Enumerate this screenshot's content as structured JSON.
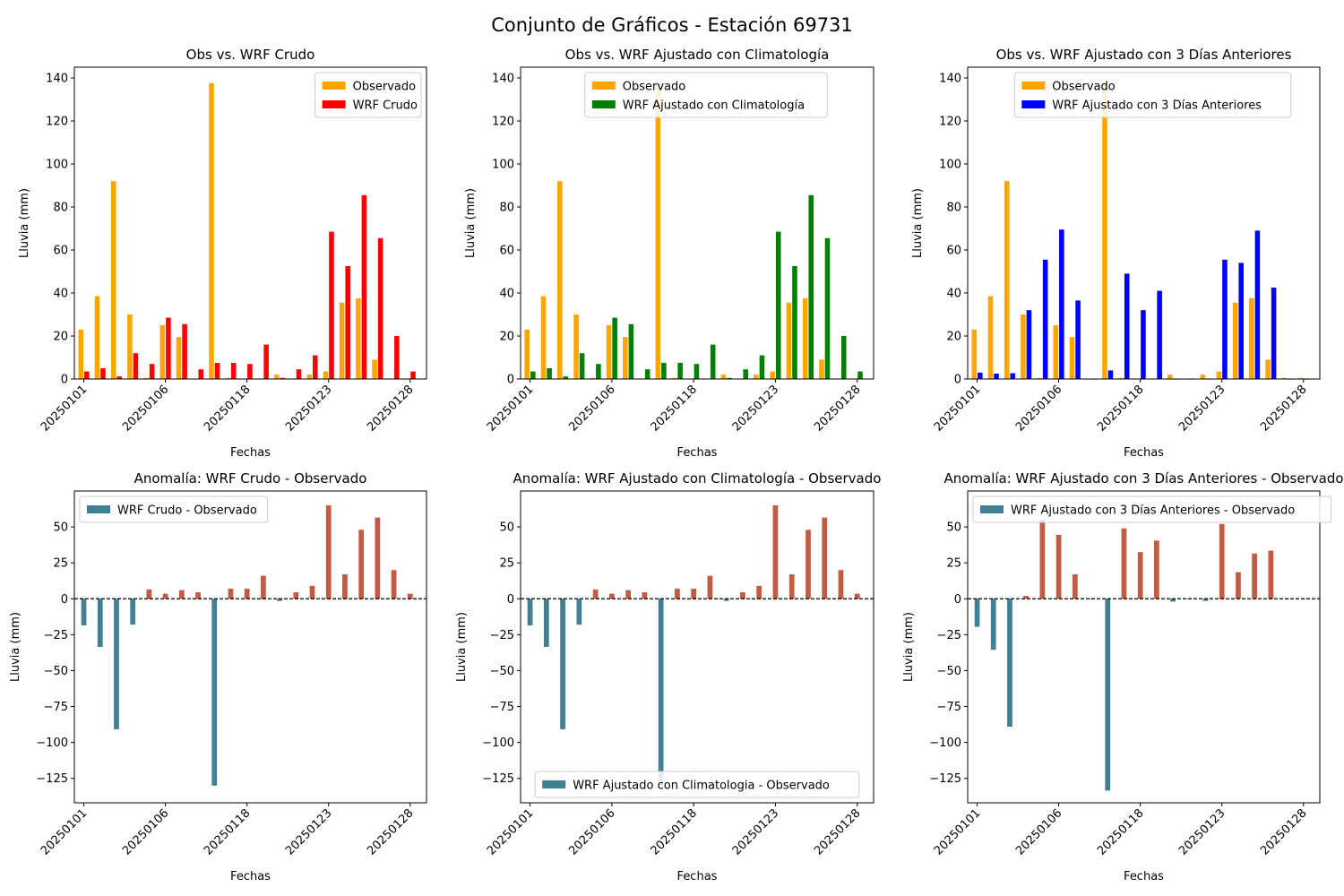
{
  "title": "Conjunto de Gráficos - Estación 69731",
  "colors": {
    "observed": "#ffa500",
    "raw": "#ff0000",
    "clim": "#008000",
    "prev": "#0000ff",
    "anom_neg": "#417f94",
    "anom_pos": "#c25a44"
  },
  "chart_data": [
    {
      "type": "bar",
      "title": "Obs vs. WRF Crudo",
      "xlabel": "Fechas",
      "ylabel": "Lluvia (mm)",
      "ylim": [
        0,
        145
      ],
      "yticks": [
        0,
        20,
        40,
        60,
        80,
        100,
        120,
        140
      ],
      "xtick_positions": [
        0,
        5,
        10,
        15,
        20
      ],
      "xtick_labels": [
        "20250101",
        "20250106",
        "20250118",
        "20250123",
        "20250128"
      ],
      "legend": "top-right",
      "series": [
        {
          "name": "Observado",
          "color_key": "observed",
          "values": [
            23,
            38.5,
            92,
            30,
            0.5,
            25,
            19.5,
            0,
            137.5,
            0.5,
            0,
            0,
            2,
            0,
            2,
            3.5,
            35.5,
            37.5,
            9,
            0,
            0
          ]
        },
        {
          "name": "WRF Crudo",
          "color_key": "raw",
          "values": [
            3.5,
            5,
            1.2,
            12,
            7,
            28.5,
            25.5,
            4.5,
            7.5,
            7.5,
            7,
            16,
            0.5,
            4.5,
            11,
            68.5,
            52.5,
            85.5,
            65.5,
            20,
            3.5
          ]
        }
      ]
    },
    {
      "type": "bar",
      "title": "Obs vs. WRF Ajustado con Climatología",
      "xlabel": "Fechas",
      "ylabel": "Lluvia (mm)",
      "ylim": [
        0,
        145
      ],
      "yticks": [
        0,
        20,
        40,
        60,
        80,
        100,
        120,
        140
      ],
      "xtick_positions": [
        0,
        5,
        10,
        15,
        20
      ],
      "xtick_labels": [
        "20250101",
        "20250106",
        "20250118",
        "20250123",
        "20250128"
      ],
      "legend": "top-center",
      "series": [
        {
          "name": "Observado",
          "color_key": "observed",
          "values": [
            23,
            38.5,
            92,
            30,
            0.5,
            25,
            19.5,
            0,
            137.5,
            0.5,
            0,
            0,
            2,
            0,
            2,
            3.5,
            35.5,
            37.5,
            9,
            0,
            0
          ]
        },
        {
          "name": "WRF Ajustado con Climatología",
          "color_key": "clim",
          "values": [
            3.5,
            5,
            1.2,
            12,
            7,
            28.5,
            25.5,
            4.5,
            7.5,
            7.5,
            7,
            16,
            0.5,
            4.5,
            11,
            68.5,
            52.5,
            85.5,
            65.5,
            20,
            3.5
          ]
        }
      ]
    },
    {
      "type": "bar",
      "title": "Obs vs. WRF Ajustado con 3 Días Anteriores",
      "xlabel": "Fechas",
      "ylabel": "Lluvia (mm)",
      "ylim": [
        0,
        145
      ],
      "yticks": [
        0,
        20,
        40,
        60,
        80,
        100,
        120,
        140
      ],
      "xtick_positions": [
        0,
        5,
        10,
        15,
        20
      ],
      "xtick_labels": [
        "20250101",
        "20250106",
        "20250118",
        "20250123",
        "20250128"
      ],
      "legend": "top-center",
      "series": [
        {
          "name": "Observado",
          "color_key": "observed",
          "values": [
            23,
            38.5,
            92,
            30,
            0.5,
            25,
            19.5,
            0,
            137.5,
            0.5,
            0,
            0,
            2,
            0,
            2,
            3.5,
            35.5,
            37.5,
            9,
            0.5,
            0.5
          ]
        },
        {
          "name": "WRF Ajustado con 3 Días Anteriores",
          "color_key": "prev",
          "values": [
            3,
            2.5,
            2.7,
            32,
            55.5,
            69.5,
            36.5,
            0,
            4,
            49,
            32,
            41,
            0,
            0,
            0,
            55.5,
            54,
            69,
            42.5,
            0,
            0
          ]
        }
      ]
    },
    {
      "type": "bar",
      "title": "Anomalía: WRF Crudo - Observado",
      "xlabel": "Fechas",
      "ylabel": "Lluvia (mm)",
      "ylim": [
        -142,
        75
      ],
      "yticks": [
        -125,
        -100,
        -75,
        -50,
        -25,
        0,
        25,
        50
      ],
      "xtick_positions": [
        0,
        5,
        10,
        15,
        20
      ],
      "xtick_labels": [
        "20250101",
        "20250106",
        "20250118",
        "20250123",
        "20250128"
      ],
      "legend": "top-left",
      "zero_line": true,
      "series": [
        {
          "name": "WRF Crudo - Observado",
          "color_key": "anom_neg",
          "values": [
            -18.5,
            -33.5,
            -90.8,
            -18,
            6.5,
            3.5,
            6,
            4.5,
            -130,
            7,
            7,
            16,
            -1.5,
            4.5,
            9,
            65,
            17,
            48,
            56.5,
            20,
            3.5
          ]
        }
      ]
    },
    {
      "type": "bar",
      "title": "Anomalía: WRF Ajustado con Climatología - Observado",
      "xlabel": "Fechas",
      "ylabel": "Lluvia (mm)",
      "ylim": [
        -142,
        75
      ],
      "yticks": [
        -125,
        -100,
        -75,
        -50,
        -25,
        0,
        25,
        50
      ],
      "xtick_positions": [
        0,
        5,
        10,
        15,
        20
      ],
      "xtick_labels": [
        "20250101",
        "20250106",
        "20250118",
        "20250123",
        "20250128"
      ],
      "legend": "bottom-center",
      "zero_line": true,
      "series": [
        {
          "name": "WRF Ajustado con Climatologia - Observado",
          "color_key": "anom_neg",
          "values": [
            -18.5,
            -33.5,
            -90.8,
            -18,
            6.5,
            3.5,
            6,
            4.5,
            -130,
            7,
            7,
            16,
            -1.5,
            4.5,
            9,
            65,
            17,
            48,
            56.5,
            20,
            3.5
          ]
        }
      ]
    },
    {
      "type": "bar",
      "title": "Anomalía: WRF Ajustado con 3 Días Anteriores - Observado",
      "xlabel": "Fechas",
      "ylabel": "Lluvia (mm)",
      "ylim": [
        -142,
        75
      ],
      "yticks": [
        -125,
        -100,
        -75,
        -50,
        -25,
        0,
        25,
        50
      ],
      "xtick_positions": [
        0,
        5,
        10,
        15,
        20
      ],
      "xtick_labels": [
        "20250101",
        "20250106",
        "20250118",
        "20250123",
        "20250128"
      ],
      "legend": "top-left",
      "zero_line": true,
      "series": [
        {
          "name": "WRF Ajustado con 3 Días Anteriores - Observado",
          "color_key": "anom_neg",
          "values": [
            -19.5,
            -35.5,
            -89,
            2,
            55,
            44.5,
            17,
            0,
            -133.5,
            49,
            32.5,
            40.5,
            -2,
            0,
            -1.5,
            52,
            18.5,
            31.5,
            33.5,
            0,
            0
          ]
        }
      ]
    }
  ]
}
